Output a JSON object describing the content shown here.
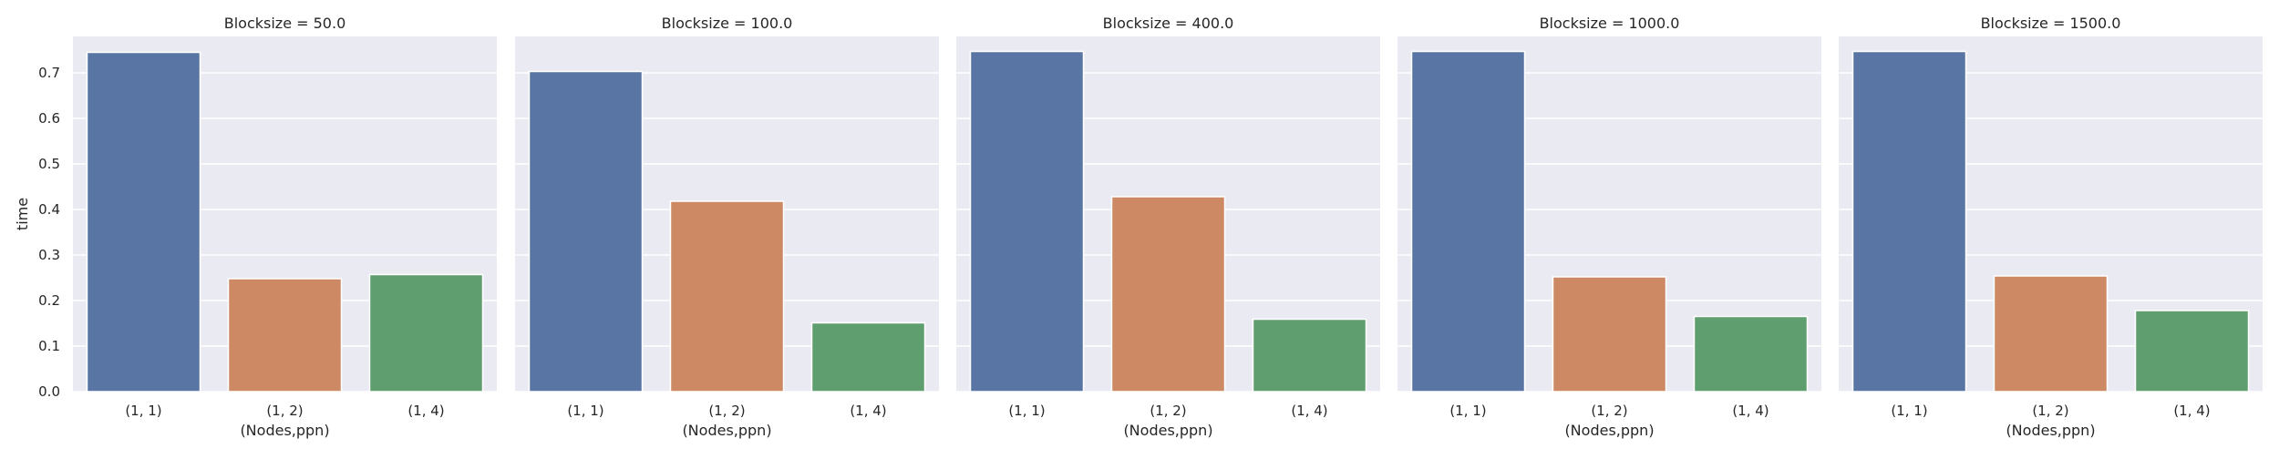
{
  "chart_data": {
    "type": "bar",
    "layout": "faceted",
    "ylabel": "time",
    "xlabel": "(Nodes,ppn)",
    "ylim": [
      0,
      0.78
    ],
    "yticks": [
      0.0,
      0.1,
      0.2,
      0.3,
      0.4,
      0.5,
      0.6,
      0.7
    ],
    "ytick_labels": [
      "0.0",
      "0.1",
      "0.2",
      "0.3",
      "0.4",
      "0.5",
      "0.6",
      "0.7"
    ],
    "categories": [
      "(1, 1)",
      "(1, 2)",
      "(1, 4)"
    ],
    "bar_colors": [
      "#5975a4",
      "#cc8963",
      "#5f9e6e"
    ],
    "background": "#eaeaf2",
    "grid": true,
    "panels": [
      {
        "title": "Blocksize = 50.0",
        "values": [
          0.745,
          0.248,
          0.257
        ]
      },
      {
        "title": "Blocksize = 100.0",
        "values": [
          0.703,
          0.418,
          0.151
        ]
      },
      {
        "title": "Blocksize = 400.0",
        "values": [
          0.747,
          0.428,
          0.159
        ]
      },
      {
        "title": "Blocksize = 1000.0",
        "values": [
          0.747,
          0.252,
          0.165
        ]
      },
      {
        "title": "Blocksize = 1500.0",
        "values": [
          0.747,
          0.254,
          0.178
        ]
      }
    ]
  }
}
